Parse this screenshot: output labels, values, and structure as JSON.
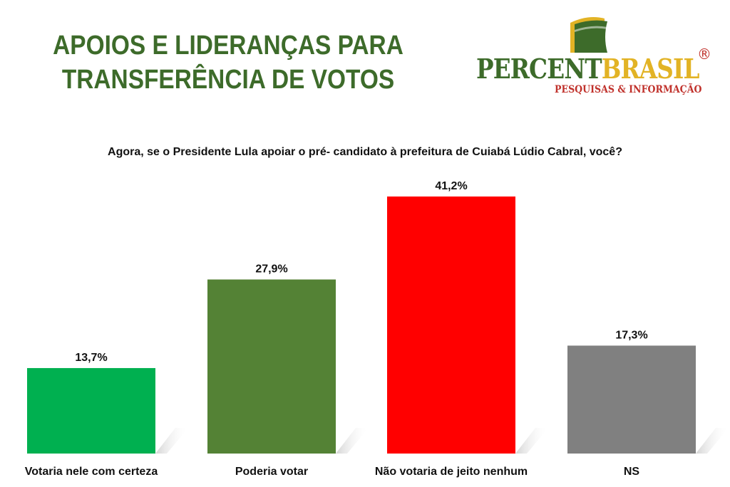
{
  "header": {
    "title_line1": "APOIOS E LIDERANÇAS PARA",
    "title_line2": "TRANSFERÊNCIA DE VOTOS"
  },
  "logo": {
    "part1": "PERCENT",
    "part2": "BRASIL",
    "registered": "®",
    "tagline": "PESQUISAS & INFORMAÇÃO",
    "colors": {
      "green": "#3d6b2a",
      "yellow": "#e2b325",
      "red": "#c0312b"
    }
  },
  "chart_data": {
    "type": "bar",
    "title": "Agora, se o Presidente Lula apoiar o pré- candidato à prefeitura de Cuiabá Lúdio Cabral, você?",
    "categories": [
      "Votaria nele com certeza",
      "Poderia votar",
      "Não votaria de jeito nenhum",
      "NS"
    ],
    "values": [
      13.7,
      27.9,
      41.2,
      17.3
    ],
    "value_labels": [
      "13,7%",
      "27,9%",
      "41,2%",
      "17,3%"
    ],
    "colors": [
      "#00b050",
      "#548235",
      "#ff0000",
      "#808080"
    ],
    "xlabel": "",
    "ylabel": "",
    "ylim": [
      0,
      41.2
    ],
    "grid": false,
    "legend": "none"
  }
}
